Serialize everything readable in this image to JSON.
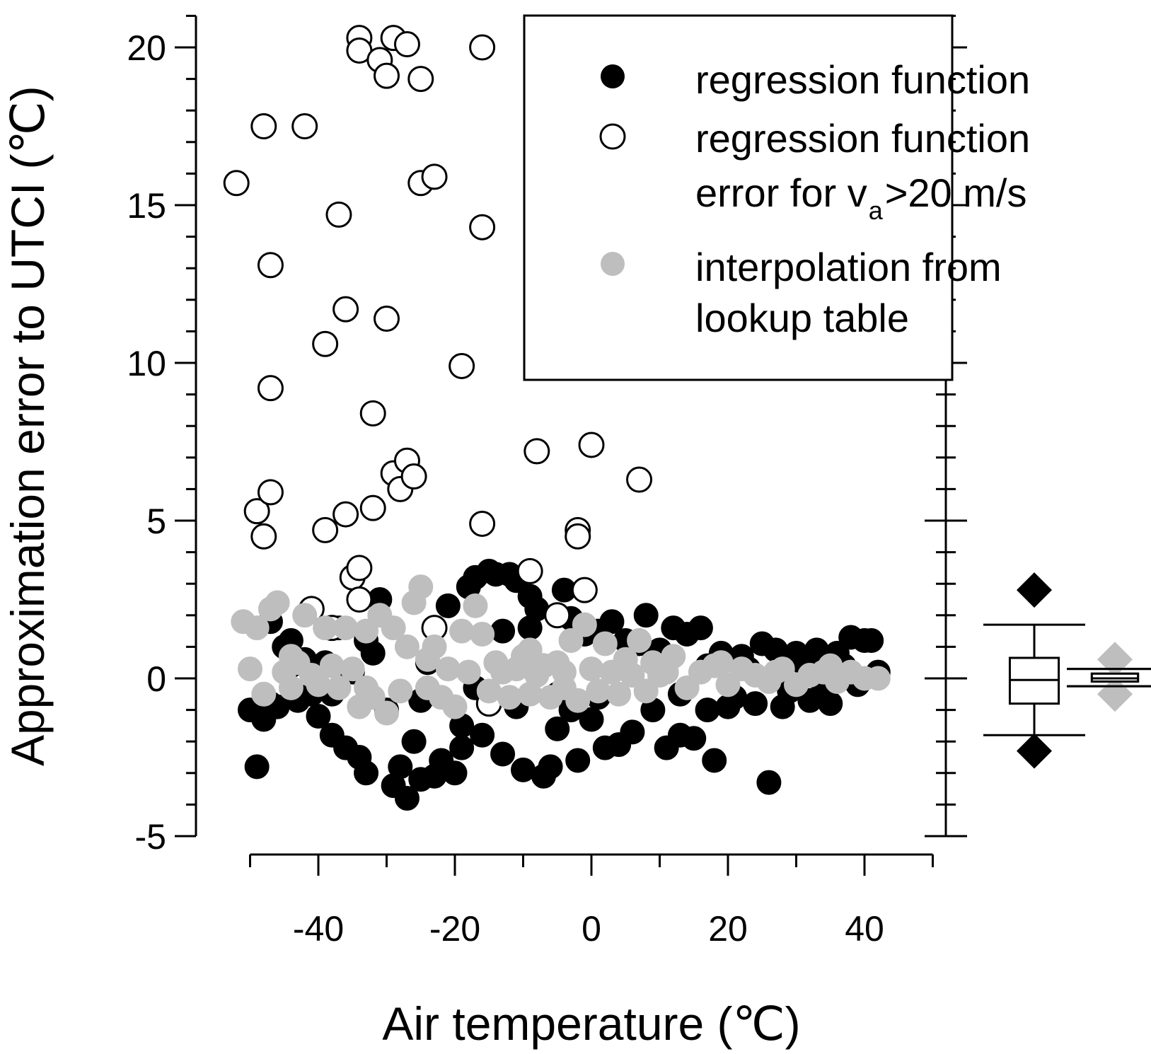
{
  "chart_data": {
    "type": "scatter",
    "xlabel": "Air temperature (℃)",
    "ylabel": "Approximation error to UTCI (℃)",
    "xlim": [
      -50,
      50
    ],
    "ylim": [
      -5,
      21
    ],
    "x_ticks": [
      -40,
      -20,
      0,
      20,
      40
    ],
    "x_tick_labels": [
      "-40",
      "-20",
      "0",
      "20",
      "40"
    ],
    "y_ticks": [
      -5,
      0,
      5,
      10,
      15,
      20
    ],
    "y_tick_labels": [
      "-5",
      "0",
      "5",
      "10",
      "15",
      "20"
    ],
    "legend": {
      "position": "top-right",
      "entries": [
        {
          "marker": "filled-black",
          "label_lines": [
            "regression function"
          ]
        },
        {
          "marker": "open-circle",
          "label_lines": [
            "regression function",
            "error for v"
          ],
          "subscript": "a",
          "label_tail": ">20 m/s"
        },
        {
          "marker": "filled-gray",
          "label_lines": [
            "interpolation from",
            "lookup table"
          ]
        }
      ]
    },
    "series": [
      {
        "name": "regression function",
        "marker": "filled-black",
        "color": "#000000",
        "points": [
          [
            -50,
            -1.0
          ],
          [
            -49,
            -2.8
          ],
          [
            -48,
            -1.3
          ],
          [
            -47,
            1.8
          ],
          [
            -46,
            -0.9
          ],
          [
            -45,
            1.0
          ],
          [
            -44,
            0.4
          ],
          [
            -43,
            -0.7
          ],
          [
            -42,
            0.6
          ],
          [
            -41,
            -0.5
          ],
          [
            -40,
            -1.2
          ],
          [
            -39,
            0.5
          ],
          [
            -38,
            -1.8
          ],
          [
            -37,
            1.6
          ],
          [
            -36,
            -2.2
          ],
          [
            -35,
            0.2
          ],
          [
            -34,
            -2.5
          ],
          [
            -33,
            -3.0
          ],
          [
            -32,
            0.8
          ],
          [
            -31,
            2.5
          ],
          [
            -30,
            -1.0
          ],
          [
            -29,
            -3.4
          ],
          [
            -28,
            -2.8
          ],
          [
            -27,
            -3.8
          ],
          [
            -26,
            -2.0
          ],
          [
            -25,
            -3.2
          ],
          [
            -24,
            0.5
          ],
          [
            -23,
            -3.1
          ],
          [
            -22,
            -2.6
          ],
          [
            -21,
            2.3
          ],
          [
            -20,
            -3.0
          ],
          [
            -19,
            -2.2
          ],
          [
            -18,
            2.9
          ],
          [
            -17,
            3.2
          ],
          [
            -16,
            -1.8
          ],
          [
            -15,
            3.4
          ],
          [
            -14,
            3.3
          ],
          [
            -13,
            -2.4
          ],
          [
            -12,
            3.3
          ],
          [
            -11,
            3.1
          ],
          [
            -10,
            -2.9
          ],
          [
            -9,
            2.6
          ],
          [
            -8,
            2.2
          ],
          [
            -7,
            -3.1
          ],
          [
            -6,
            -2.8
          ],
          [
            -5,
            -1.6
          ],
          [
            -4,
            2.8
          ],
          [
            -3,
            1.9
          ],
          [
            -2,
            -2.6
          ],
          [
            -1,
            1.4
          ],
          [
            0,
            -1.3
          ],
          [
            1,
            1.5
          ],
          [
            2,
            -2.2
          ],
          [
            3,
            1.8
          ],
          [
            4,
            -2.1
          ],
          [
            5,
            1.2
          ],
          [
            6,
            -1.7
          ],
          [
            7,
            1.1
          ],
          [
            8,
            2.0
          ],
          [
            9,
            -1.0
          ],
          [
            10,
            0.9
          ],
          [
            11,
            -2.2
          ],
          [
            12,
            1.6
          ],
          [
            13,
            -1.8
          ],
          [
            14,
            1.4
          ],
          [
            15,
            -1.9
          ],
          [
            16,
            1.6
          ],
          [
            17,
            -1.0
          ],
          [
            18,
            -2.6
          ],
          [
            19,
            0.8
          ],
          [
            20,
            -0.9
          ],
          [
            22,
            0.7
          ],
          [
            24,
            -0.8
          ],
          [
            25,
            1.1
          ],
          [
            26,
            -3.3
          ],
          [
            27,
            0.9
          ],
          [
            28,
            -0.9
          ],
          [
            30,
            0.8
          ],
          [
            32,
            -0.7
          ],
          [
            33,
            0.9
          ],
          [
            35,
            -0.8
          ],
          [
            36,
            0.8
          ],
          [
            38,
            1.3
          ],
          [
            40,
            1.2
          ],
          [
            41,
            1.2
          ],
          [
            42,
            0.2
          ],
          [
            -47,
            -0.8
          ],
          [
            -44,
            1.2
          ],
          [
            -38,
            -0.5
          ],
          [
            -33,
            1.2
          ],
          [
            -25,
            -0.7
          ],
          [
            -19,
            -1.5
          ],
          [
            -17,
            -0.3
          ],
          [
            -13,
            1.5
          ],
          [
            -11,
            -0.9
          ],
          [
            -9,
            1.6
          ],
          [
            -7,
            0.4
          ],
          [
            -5,
            -0.5
          ],
          [
            -3,
            -1.0
          ],
          [
            1,
            -0.6
          ],
          [
            5,
            0.3
          ],
          [
            9,
            0.5
          ],
          [
            13,
            -0.5
          ],
          [
            17,
            0.4
          ],
          [
            21,
            -0.6
          ],
          [
            23,
            0.3
          ],
          [
            29,
            -0.4
          ],
          [
            31,
            0.5
          ],
          [
            34,
            -0.3
          ],
          [
            37,
            0.4
          ],
          [
            39,
            -0.2
          ]
        ]
      },
      {
        "name": "regression function error for va>20 m/s",
        "marker": "open-circle",
        "color": "#000000",
        "points": [
          [
            -52,
            15.7
          ],
          [
            -48,
            17.5
          ],
          [
            -42,
            17.5
          ],
          [
            -47,
            13.1
          ],
          [
            -47,
            9.2
          ],
          [
            -49,
            5.3
          ],
          [
            -48,
            4.5
          ],
          [
            -47,
            5.9
          ],
          [
            -39,
            10.6
          ],
          [
            -39,
            4.7
          ],
          [
            -37,
            14.7
          ],
          [
            -36,
            11.7
          ],
          [
            -36,
            5.2
          ],
          [
            -35,
            3.2
          ],
          [
            -34,
            3.5
          ],
          [
            -34,
            2.5
          ],
          [
            -34,
            20.3
          ],
          [
            -34,
            19.9
          ],
          [
            -31,
            19.6
          ],
          [
            -30,
            19.1
          ],
          [
            -29,
            20.3
          ],
          [
            -27,
            20.1
          ],
          [
            -25,
            19.0
          ],
          [
            -25,
            15.7
          ],
          [
            -23,
            15.9
          ],
          [
            -16,
            20.0
          ],
          [
            -16,
            14.3
          ],
          [
            -32,
            8.4
          ],
          [
            -32,
            5.4
          ],
          [
            -30,
            11.4
          ],
          [
            -29,
            6.5
          ],
          [
            -28,
            6.0
          ],
          [
            -27,
            6.9
          ],
          [
            -26,
            6.4
          ],
          [
            -19,
            9.9
          ],
          [
            -16,
            4.9
          ],
          [
            -9,
            3.4
          ],
          [
            -8,
            7.2
          ],
          [
            -5,
            2.0
          ],
          [
            -2,
            4.7
          ],
          [
            -2,
            4.5
          ],
          [
            0,
            7.4
          ],
          [
            -1,
            2.8
          ],
          [
            7,
            6.3
          ],
          [
            -23,
            1.6
          ],
          [
            -41,
            2.2
          ],
          [
            -38,
            1.6
          ],
          [
            -15,
            -0.8
          ]
        ]
      },
      {
        "name": "interpolation from lookup table",
        "marker": "filled-gray",
        "color": "#bebebe",
        "points": [
          [
            -51,
            1.8
          ],
          [
            -50,
            0.3
          ],
          [
            -49,
            1.6
          ],
          [
            -48,
            -0.5
          ],
          [
            -47,
            2.2
          ],
          [
            -46,
            2.4
          ],
          [
            -45,
            0.2
          ],
          [
            -44,
            -0.3
          ],
          [
            -43,
            0.5
          ],
          [
            -42,
            2.0
          ],
          [
            -41,
            0.1
          ],
          [
            -40,
            -0.2
          ],
          [
            -39,
            1.6
          ],
          [
            -38,
            0.4
          ],
          [
            -37,
            -0.3
          ],
          [
            -36,
            1.6
          ],
          [
            -35,
            0.3
          ],
          [
            -34,
            -0.9
          ],
          [
            -33,
            1.5
          ],
          [
            -32,
            -0.6
          ],
          [
            -31,
            2.0
          ],
          [
            -30,
            -1.1
          ],
          [
            -29,
            1.6
          ],
          [
            -28,
            -0.4
          ],
          [
            -27,
            1.0
          ],
          [
            -26,
            2.4
          ],
          [
            -25,
            2.9
          ],
          [
            -24,
            -0.3
          ],
          [
            -23,
            1.0
          ],
          [
            -22,
            -0.6
          ],
          [
            -21,
            0.3
          ],
          [
            -20,
            -0.9
          ],
          [
            -19,
            1.5
          ],
          [
            -18,
            0.2
          ],
          [
            -17,
            2.3
          ],
          [
            -16,
            1.4
          ],
          [
            -15,
            -0.4
          ],
          [
            -14,
            0.5
          ],
          [
            -13,
            0.2
          ],
          [
            -12,
            -0.6
          ],
          [
            -11,
            0.3
          ],
          [
            -10,
            0.7
          ],
          [
            -9,
            -0.5
          ],
          [
            -8,
            0.1
          ],
          [
            -7,
            0.4
          ],
          [
            -6,
            -0.6
          ],
          [
            -5,
            0.5
          ],
          [
            -4,
            0.2
          ],
          [
            -3,
            1.2
          ],
          [
            -2,
            -0.7
          ],
          [
            -1,
            1.7
          ],
          [
            0,
            0.3
          ],
          [
            1,
            -0.4
          ],
          [
            2,
            1.1
          ],
          [
            3,
            0.2
          ],
          [
            4,
            -0.5
          ],
          [
            5,
            0.6
          ],
          [
            6,
            0.1
          ],
          [
            7,
            1.2
          ],
          [
            8,
            -0.4
          ],
          [
            9,
            0.5
          ],
          [
            10,
            0.1
          ],
          [
            12,
            0.7
          ],
          [
            14,
            -0.3
          ],
          [
            16,
            0.2
          ],
          [
            18,
            0.4
          ],
          [
            20,
            -0.2
          ],
          [
            22,
            0.3
          ],
          [
            24,
            0.1
          ],
          [
            26,
            -0.1
          ],
          [
            28,
            0.3
          ],
          [
            30,
            -0.2
          ],
          [
            32,
            0.1
          ],
          [
            34,
            0.2
          ],
          [
            36,
            -0.1
          ],
          [
            38,
            0.2
          ],
          [
            40,
            0.0
          ],
          [
            42,
            0.0
          ],
          [
            -44,
            0.7
          ],
          [
            -33,
            -0.3
          ],
          [
            -24,
            0.6
          ],
          [
            -9,
            0.9
          ],
          [
            -4,
            -0.3
          ],
          [
            11,
            0.2
          ],
          [
            19,
            0.5
          ],
          [
            27,
            0.2
          ],
          [
            35,
            0.4
          ]
        ]
      }
    ],
    "boxplots": [
      {
        "series": "regression function",
        "fill": "#ffffff",
        "stroke": "#000000",
        "whisker_low": -1.8,
        "q1": -0.8,
        "median": -0.05,
        "q3": 0.65,
        "whisker_high": 1.7,
        "extreme_low": -2.3,
        "extreme_high": 2.8,
        "extreme_color": "#000000"
      },
      {
        "series": "interpolation from lookup table",
        "fill": "#ffffff",
        "stroke": "#000000",
        "whisker_low": -0.25,
        "q1": -0.1,
        "median": 0.0,
        "q3": 0.15,
        "whisker_high": 0.3,
        "extreme_low": -0.5,
        "extreme_high": 0.6,
        "extreme_color": "#bebebe"
      }
    ],
    "grid": false
  }
}
